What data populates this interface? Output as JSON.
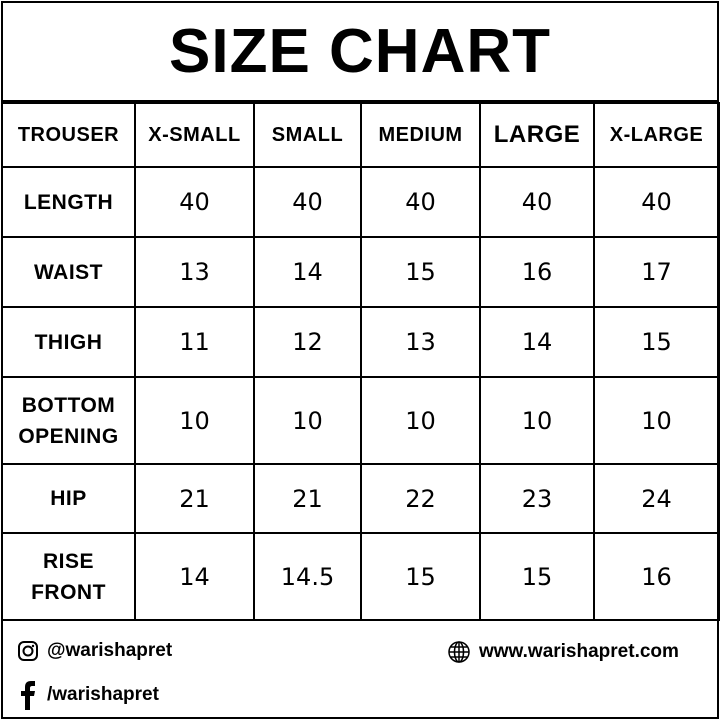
{
  "title": "SIZE CHART",
  "chart_data": {
    "type": "table",
    "title": "SIZE CHART",
    "columns": [
      "TROUSER",
      "X-SMALL",
      "SMALL",
      "MEDIUM",
      "LARGE",
      "X-LARGE"
    ],
    "rows": [
      {
        "label": "LENGTH",
        "values": [
          "40",
          "40",
          "40",
          "40",
          "40"
        ]
      },
      {
        "label": "WAIST",
        "values": [
          "13",
          "14",
          "15",
          "16",
          "17"
        ]
      },
      {
        "label": "THIGH",
        "values": [
          "11",
          "12",
          "13",
          "14",
          "15"
        ]
      },
      {
        "label": "BOTTOM OPENING",
        "values": [
          "10",
          "10",
          "10",
          "10",
          "10"
        ]
      },
      {
        "label": "HIP",
        "values": [
          "21",
          "21",
          "22",
          "23",
          "24"
        ]
      },
      {
        "label": "RISE FRONT",
        "values": [
          "14",
          "14.5",
          "15",
          "15",
          "16"
        ]
      }
    ]
  },
  "footer": {
    "instagram": {
      "icon": "instagram-icon",
      "text": "@warishapret"
    },
    "facebook": {
      "icon": "facebook-icon",
      "text": "/warishapret"
    },
    "website": {
      "icon": "globe-icon",
      "text": "www.warishapret.com"
    }
  }
}
